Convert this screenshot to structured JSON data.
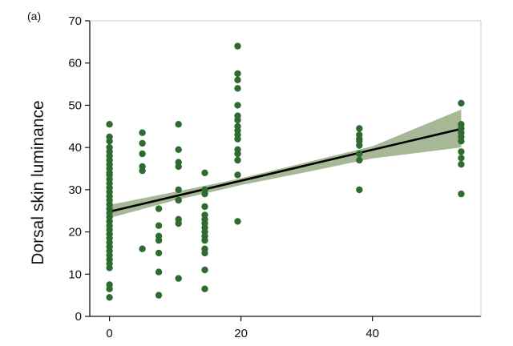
{
  "panel_label": "(a)",
  "chart_data": {
    "type": "scatter",
    "title": "",
    "xlabel": "",
    "ylabel": "Dorsal skin luminance",
    "xlim": [
      -3,
      56.5
    ],
    "ylim": [
      0,
      70
    ],
    "xticks": [
      0,
      20,
      40
    ],
    "yticks": [
      0,
      10,
      20,
      30,
      40,
      50,
      60,
      70
    ],
    "grid": false,
    "legend": "none",
    "colors": {
      "points": "#2f6b30",
      "fit_line": "#000000",
      "confidence_band": "#97ab84"
    },
    "fit": {
      "x": [
        0,
        53.5
      ],
      "y": [
        24.8,
        44.4
      ]
    },
    "confidence_band": {
      "x": [
        0,
        10,
        20,
        30,
        40,
        53.5
      ],
      "lower": [
        23.3,
        27.5,
        31.1,
        34.2,
        37.4,
        40.0
      ],
      "upper": [
        26.4,
        29.5,
        32.7,
        36.5,
        40.3,
        49.0
      ]
    },
    "points": [
      {
        "x": 0,
        "y": 45.5
      },
      {
        "x": 0,
        "y": 42.5
      },
      {
        "x": 0,
        "y": 41.5
      },
      {
        "x": 0,
        "y": 40.0
      },
      {
        "x": 0,
        "y": 39.0
      },
      {
        "x": 0,
        "y": 38.0
      },
      {
        "x": 0,
        "y": 37.0
      },
      {
        "x": 0,
        "y": 36.0
      },
      {
        "x": 0,
        "y": 35.0
      },
      {
        "x": 0,
        "y": 34.0
      },
      {
        "x": 0,
        "y": 33.5
      },
      {
        "x": 0,
        "y": 32.5
      },
      {
        "x": 0,
        "y": 31.5
      },
      {
        "x": 0,
        "y": 30.5
      },
      {
        "x": 0,
        "y": 29.5
      },
      {
        "x": 0,
        "y": 28.5
      },
      {
        "x": 0,
        "y": 27.5
      },
      {
        "x": 0,
        "y": 26.5
      },
      {
        "x": 0,
        "y": 25.5
      },
      {
        "x": 0,
        "y": 24.5
      },
      {
        "x": 0,
        "y": 23.5
      },
      {
        "x": 0,
        "y": 22.5
      },
      {
        "x": 0,
        "y": 21.5
      },
      {
        "x": 0,
        "y": 20.5
      },
      {
        "x": 0,
        "y": 19.5
      },
      {
        "x": 0,
        "y": 18.5
      },
      {
        "x": 0,
        "y": 17.5
      },
      {
        "x": 0,
        "y": 16.5
      },
      {
        "x": 0,
        "y": 15.5
      },
      {
        "x": 0,
        "y": 14.5
      },
      {
        "x": 0,
        "y": 13.5
      },
      {
        "x": 0,
        "y": 12.5
      },
      {
        "x": 0,
        "y": 11.5
      },
      {
        "x": 0,
        "y": 7.5
      },
      {
        "x": 0,
        "y": 6.5
      },
      {
        "x": 0,
        "y": 4.5
      },
      {
        "x": 5,
        "y": 43.5
      },
      {
        "x": 5,
        "y": 41.0
      },
      {
        "x": 5,
        "y": 38.5
      },
      {
        "x": 5,
        "y": 35.5
      },
      {
        "x": 5,
        "y": 34.5
      },
      {
        "x": 5,
        "y": 16.0
      },
      {
        "x": 7.5,
        "y": 25.5
      },
      {
        "x": 7.5,
        "y": 21.5
      },
      {
        "x": 7.5,
        "y": 19.0
      },
      {
        "x": 7.5,
        "y": 18.0
      },
      {
        "x": 7.5,
        "y": 15.0
      },
      {
        "x": 7.5,
        "y": 10.5
      },
      {
        "x": 7.5,
        "y": 5.0
      },
      {
        "x": 10.5,
        "y": 45.5
      },
      {
        "x": 10.5,
        "y": 39.5
      },
      {
        "x": 10.5,
        "y": 36.5
      },
      {
        "x": 10.5,
        "y": 35.5
      },
      {
        "x": 10.5,
        "y": 30.0
      },
      {
        "x": 10.5,
        "y": 27.5
      },
      {
        "x": 10.5,
        "y": 23.0
      },
      {
        "x": 10.5,
        "y": 22.0
      },
      {
        "x": 10.5,
        "y": 9.0
      },
      {
        "x": 14.5,
        "y": 34.0
      },
      {
        "x": 14.5,
        "y": 30.0
      },
      {
        "x": 14.5,
        "y": 29.0
      },
      {
        "x": 14.5,
        "y": 26.0
      },
      {
        "x": 14.5,
        "y": 24.0
      },
      {
        "x": 14.5,
        "y": 23.0
      },
      {
        "x": 14.5,
        "y": 22.0
      },
      {
        "x": 14.5,
        "y": 21.0
      },
      {
        "x": 14.5,
        "y": 20.0
      },
      {
        "x": 14.5,
        "y": 19.0
      },
      {
        "x": 14.5,
        "y": 18.0
      },
      {
        "x": 14.5,
        "y": 16.0
      },
      {
        "x": 14.5,
        "y": 15.0
      },
      {
        "x": 14.5,
        "y": 11.0
      },
      {
        "x": 14.5,
        "y": 6.5
      },
      {
        "x": 19.5,
        "y": 64.0
      },
      {
        "x": 19.5,
        "y": 57.5
      },
      {
        "x": 19.5,
        "y": 56.0
      },
      {
        "x": 19.5,
        "y": 54.0
      },
      {
        "x": 19.5,
        "y": 50.0
      },
      {
        "x": 19.5,
        "y": 47.5
      },
      {
        "x": 19.5,
        "y": 46.5
      },
      {
        "x": 19.5,
        "y": 45.0
      },
      {
        "x": 19.5,
        "y": 44.0
      },
      {
        "x": 19.5,
        "y": 43.0
      },
      {
        "x": 19.5,
        "y": 42.0
      },
      {
        "x": 19.5,
        "y": 39.5
      },
      {
        "x": 19.5,
        "y": 38.5
      },
      {
        "x": 19.5,
        "y": 37.0
      },
      {
        "x": 19.5,
        "y": 33.5
      },
      {
        "x": 19.5,
        "y": 22.5
      },
      {
        "x": 38,
        "y": 44.5
      },
      {
        "x": 38,
        "y": 43.0
      },
      {
        "x": 38,
        "y": 42.0
      },
      {
        "x": 38,
        "y": 41.5
      },
      {
        "x": 38,
        "y": 40.5
      },
      {
        "x": 38,
        "y": 38.5
      },
      {
        "x": 38,
        "y": 37.0
      },
      {
        "x": 38,
        "y": 30.0
      },
      {
        "x": 53.5,
        "y": 50.5
      },
      {
        "x": 53.5,
        "y": 45.5
      },
      {
        "x": 53.5,
        "y": 44.5
      },
      {
        "x": 53.5,
        "y": 43.5
      },
      {
        "x": 53.5,
        "y": 42.5
      },
      {
        "x": 53.5,
        "y": 41.5
      },
      {
        "x": 53.5,
        "y": 39.0
      },
      {
        "x": 53.5,
        "y": 37.5
      },
      {
        "x": 53.5,
        "y": 36.0
      },
      {
        "x": 53.5,
        "y": 29.0
      }
    ]
  }
}
